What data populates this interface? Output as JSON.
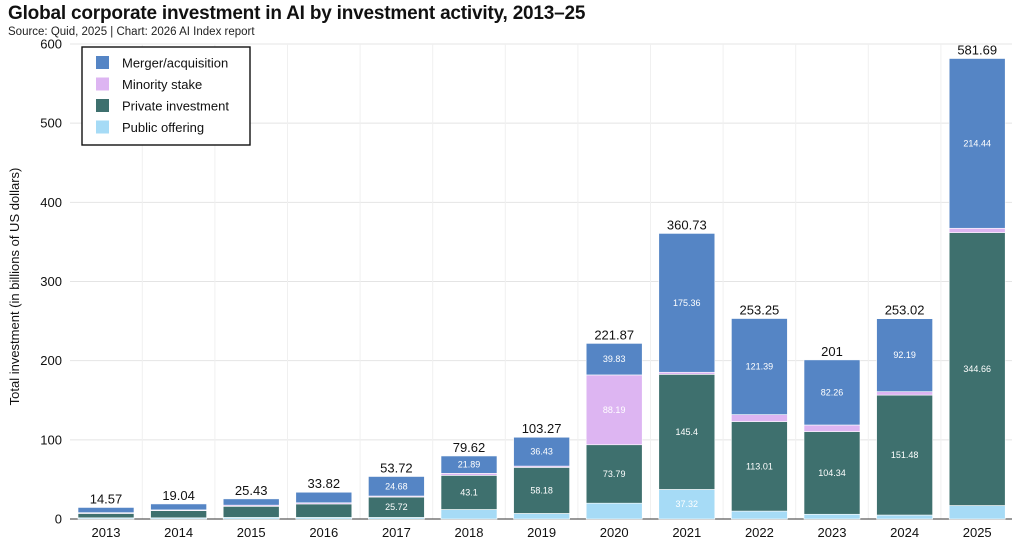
{
  "title": "Global corporate investment in AI by investment activity, 2013–25",
  "source": "Source: Quid, 2025 | Chart: 2026 AI Index report",
  "colors": {
    "merger": "#5585C5",
    "minority": "#DDB5F2",
    "private": "#3E706E",
    "public": "#A6DBF6"
  },
  "chart_data": {
    "type": "bar",
    "stacked": true,
    "ylabel": "Total investment (in billions of US dollars)",
    "ylim": [
      0,
      600
    ],
    "yticks": [
      0,
      100,
      200,
      300,
      400,
      500,
      600
    ],
    "grid": true,
    "legend_position": "top-left",
    "categories": [
      "2013",
      "2014",
      "2015",
      "2016",
      "2017",
      "2018",
      "2019",
      "2020",
      "2021",
      "2022",
      "2023",
      "2024",
      "2025"
    ],
    "series": [
      {
        "key": "public",
        "name": "Public offering",
        "values": [
          1.5,
          1.5,
          2.0,
          2.0,
          2.0,
          12.0,
          7.0,
          20.0,
          37.32,
          10.0,
          6.0,
          5.0,
          17.0
        ],
        "labels": [
          "",
          "",
          "",
          "",
          "",
          "",
          "",
          "",
          "37.32",
          "",
          "",
          "",
          ""
        ]
      },
      {
        "key": "private",
        "name": "Private investment",
        "values": [
          5.5,
          9.0,
          14.0,
          17.0,
          25.72,
          43.1,
          58.18,
          73.79,
          145.4,
          113.01,
          104.34,
          151.48,
          344.66
        ],
        "labels": [
          "",
          "",
          "",
          "",
          "25.72",
          "43.1",
          "58.18",
          "73.79",
          "145.4",
          "113.01",
          "104.34",
          "151.48",
          "344.66"
        ]
      },
      {
        "key": "minority",
        "name": "Minority stake",
        "values": [
          1.0,
          1.0,
          1.5,
          1.5,
          1.3,
          2.63,
          1.66,
          88.19,
          2.65,
          8.85,
          8.4,
          4.35,
          5.59
        ],
        "labels": [
          "",
          "",
          "",
          "",
          "",
          "",
          "",
          "88.19",
          "",
          "",
          "",
          "",
          ""
        ]
      },
      {
        "key": "merger",
        "name": "Merger/acquisition",
        "values": [
          6.57,
          7.54,
          7.93,
          13.32,
          24.68,
          21.89,
          36.43,
          39.83,
          175.36,
          121.39,
          82.26,
          92.19,
          214.44
        ],
        "labels": [
          "",
          "",
          "",
          "",
          "24.68",
          "21.89",
          "36.43",
          "39.83",
          "175.36",
          "121.39",
          "82.26",
          "92.19",
          "214.44"
        ]
      }
    ],
    "totals": [
      "14.57",
      "19.04",
      "25.43",
      "33.82",
      "53.72",
      "79.62",
      "103.27",
      "221.87",
      "360.73",
      "253.25",
      "201",
      "253.02",
      "581.69"
    ],
    "legend_order": [
      "merger",
      "minority",
      "private",
      "public"
    ]
  }
}
